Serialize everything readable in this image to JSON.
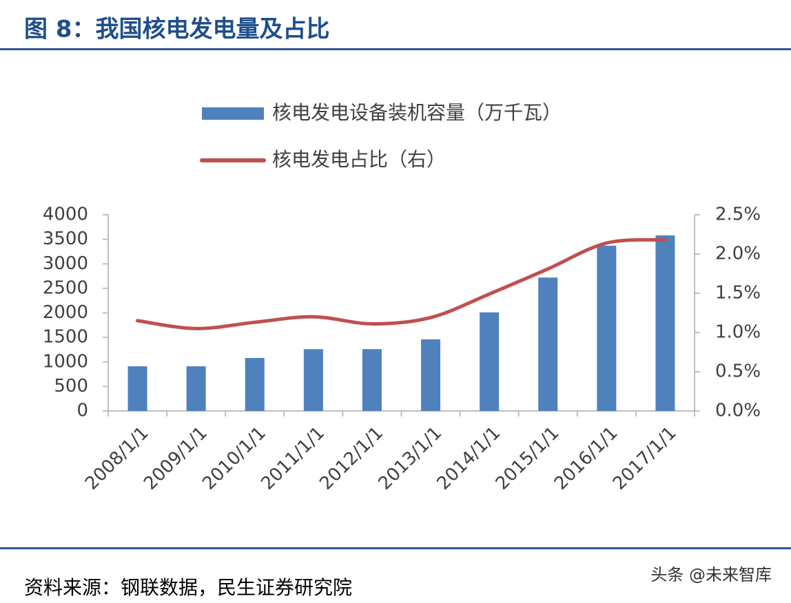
{
  "chart_data": {
    "type": "bar-line",
    "title": "图 8：我国核电发电量及占比",
    "source": "资料来源：钢联数据，民生证券研究院",
    "watermark": "头条 @未来智库",
    "categories": [
      "2008/1/1",
      "2009/1/1",
      "2010/1/1",
      "2011/1/1",
      "2012/1/1",
      "2013/1/1",
      "2014/1/1",
      "2015/1/1",
      "2016/1/1",
      "2017/1/1"
    ],
    "series": [
      {
        "name": "核电发电设备装机容量（万千瓦）",
        "type": "bar",
        "color": "#4f81bd",
        "values": [
          910,
          910,
          1080,
          1260,
          1260,
          1460,
          2010,
          2720,
          3370,
          3580
        ]
      },
      {
        "name": "核电发电占比（右）",
        "type": "line",
        "axis": "y2",
        "color": "#c0504d",
        "values": [
          1.15,
          1.05,
          1.13,
          1.2,
          1.11,
          1.19,
          1.49,
          1.81,
          2.14,
          2.18
        ]
      }
    ],
    "ylim": [
      0,
      4000
    ],
    "yticks": [
      0,
      500,
      1000,
      1500,
      2000,
      2500,
      3000,
      3500,
      4000
    ],
    "y2lim": [
      0,
      2.5
    ],
    "y2ticks": [
      {
        "value": 0,
        "label": "0.0%"
      },
      {
        "value": 0.5,
        "label": "0.5%"
      },
      {
        "value": 1,
        "label": "1.0%"
      },
      {
        "value": 1.5,
        "label": "1.5%"
      },
      {
        "value": 2,
        "label": "2.0%"
      },
      {
        "value": 2.5,
        "label": "2.5%"
      }
    ]
  }
}
